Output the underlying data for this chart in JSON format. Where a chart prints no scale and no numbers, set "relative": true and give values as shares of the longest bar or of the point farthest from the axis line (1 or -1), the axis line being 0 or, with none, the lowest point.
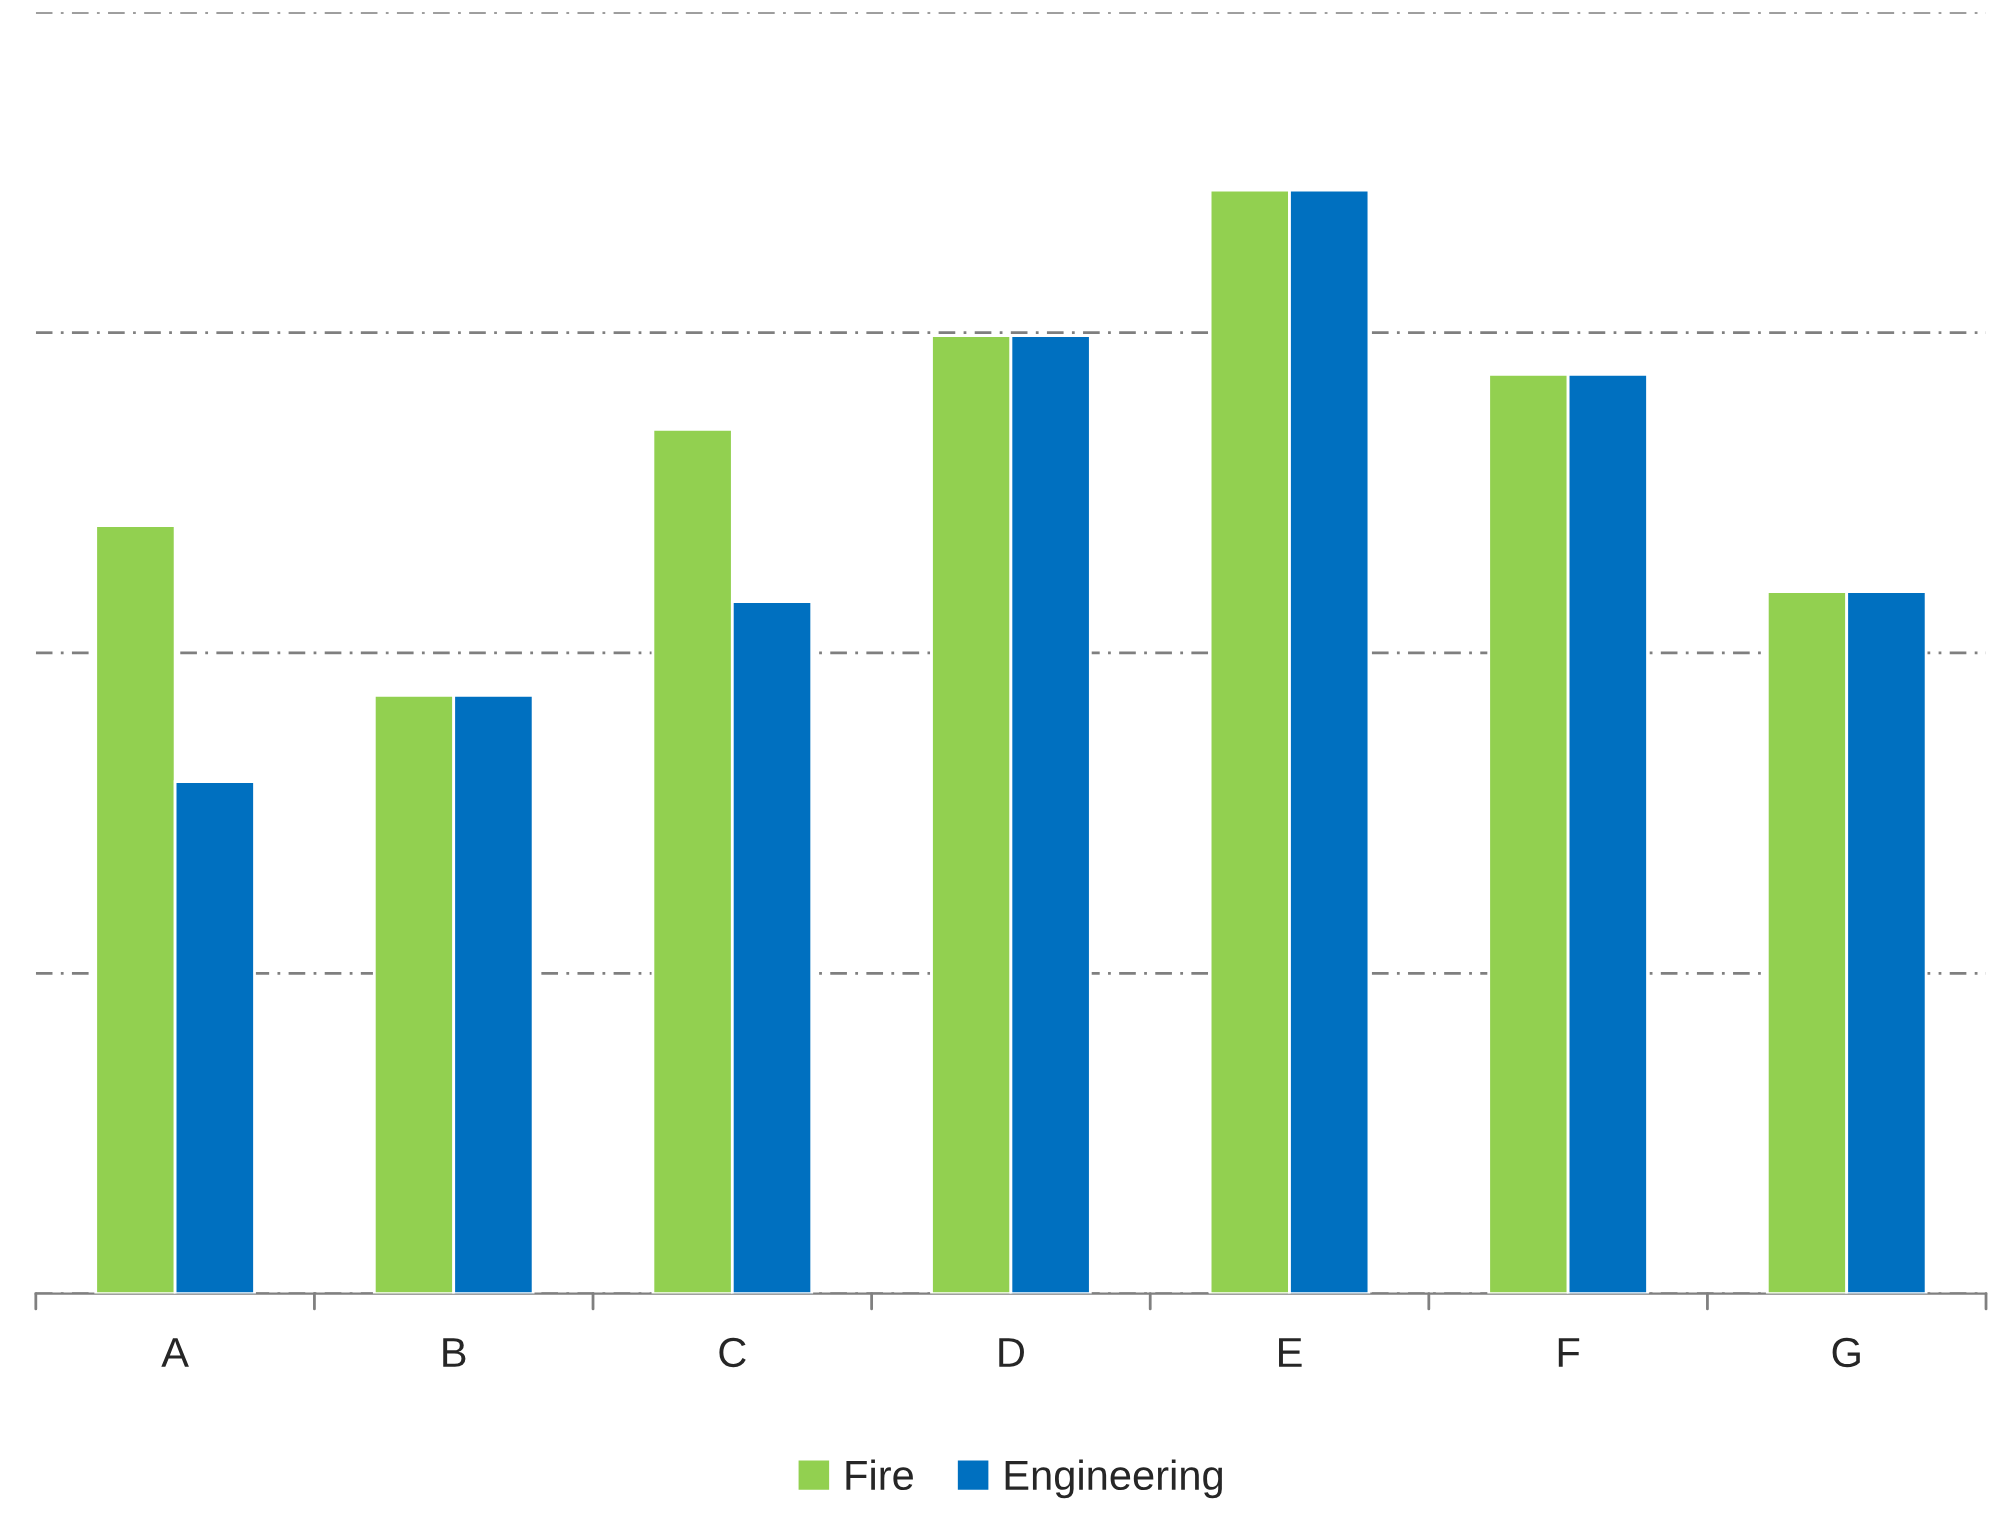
{
  "chart_data": {
    "type": "bar",
    "relative": true,
    "categories": [
      "A",
      "B",
      "C",
      "D",
      "E",
      "F",
      "G"
    ],
    "series": [
      {
        "name": "Fire",
        "color": "#92d050",
        "values": [
          0.696,
          0.542,
          0.783,
          0.868,
          1,
          0.833,
          0.636
        ]
      },
      {
        "name": "Engineering",
        "color": "#0070c0",
        "values": [
          0.464,
          0.542,
          0.627,
          0.868,
          1,
          0.833,
          0.636
        ]
      }
    ],
    "grid": "y",
    "legend": "bottom"
  }
}
